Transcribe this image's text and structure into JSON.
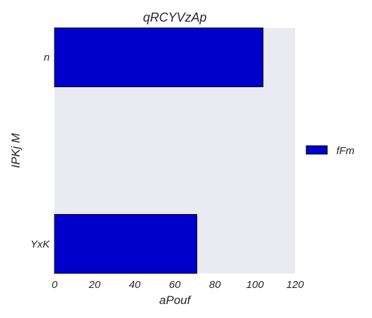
{
  "chart_data": {
    "type": "bar",
    "orientation": "horizontal",
    "title": "qRCYVzAp",
    "xlabel": "aPouf",
    "ylabel": "IPKj M",
    "categories": [
      "YxK",
      "n"
    ],
    "series": [
      {
        "name": "fFm",
        "values": [
          71,
          104
        ],
        "color": "#0000cc"
      }
    ],
    "xlim": [
      0,
      120
    ],
    "xticks": [
      "0",
      "20",
      "40",
      "60",
      "80",
      "100",
      "120"
    ],
    "grid": false,
    "legend_position": "right",
    "plot_background": "#eaeaf2",
    "bar_edge_color": "#000000"
  }
}
